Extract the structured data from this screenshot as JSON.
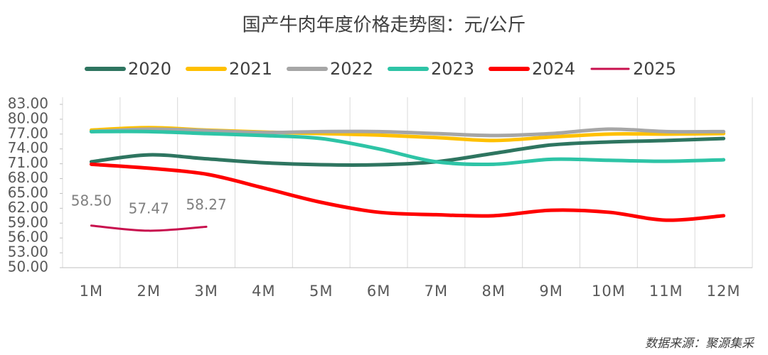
{
  "chart_data": {
    "type": "line",
    "title": "国产牛肉年度价格走势图：元/公斤",
    "source": "数据来源：聚源集采",
    "categories": [
      "1M",
      "2M",
      "3M",
      "4M",
      "5M",
      "6M",
      "7M",
      "8M",
      "9M",
      "10M",
      "11M",
      "12M"
    ],
    "ylim": [
      50,
      83
    ],
    "yticks": [
      {
        "value": 50,
        "label": "50.00"
      },
      {
        "value": 53,
        "label": "53.00"
      },
      {
        "value": 56,
        "label": "56.00"
      },
      {
        "value": 59,
        "label": "59.00"
      },
      {
        "value": 62,
        "label": "62.00"
      },
      {
        "value": 65,
        "label": "65.00"
      },
      {
        "value": 68,
        "label": "68.00"
      },
      {
        "value": 71,
        "label": "71.00"
      },
      {
        "value": 74,
        "label": "74.00"
      },
      {
        "value": 77,
        "label": "77.00"
      },
      {
        "value": 80,
        "label": "80.00"
      },
      {
        "value": 83,
        "label": "83.00"
      }
    ],
    "legend": "top",
    "series": [
      {
        "name": "2020",
        "color": "#2e7560",
        "values": [
          71.4,
          72.8,
          72.0,
          71.2,
          70.8,
          70.8,
          71.4,
          73.1,
          74.8,
          75.4,
          75.7,
          76.1
        ]
      },
      {
        "name": "2021",
        "color": "#ffc000",
        "values": [
          77.8,
          78.3,
          77.8,
          77.4,
          77.1,
          76.8,
          76.3,
          75.7,
          76.4,
          77.0,
          77.0,
          77.1
        ]
      },
      {
        "name": "2022",
        "color": "#a6a6a6",
        "values": [
          77.5,
          78.0,
          77.7,
          77.3,
          77.5,
          77.5,
          77.1,
          76.7,
          77.1,
          78.0,
          77.5,
          77.5
        ]
      },
      {
        "name": "2023",
        "color": "#2ec4a6",
        "values": [
          77.5,
          77.5,
          77.1,
          76.7,
          76.1,
          74.0,
          71.4,
          70.9,
          71.9,
          71.7,
          71.5,
          71.8
        ]
      },
      {
        "name": "2024",
        "color": "#ff0000",
        "values": [
          70.9,
          70.1,
          68.9,
          66.1,
          63.2,
          61.2,
          60.7,
          60.5,
          61.6,
          61.2,
          59.6,
          60.5
        ]
      },
      {
        "name": "2025",
        "color": "#c8104e",
        "values": [
          58.5,
          57.47,
          58.27,
          null,
          null,
          null,
          null,
          null,
          null,
          null,
          null,
          null
        ],
        "value_labels": [
          "58.50",
          "57.47",
          "58.27",
          null,
          null,
          null,
          null,
          null,
          null,
          null,
          null,
          null
        ]
      }
    ]
  }
}
